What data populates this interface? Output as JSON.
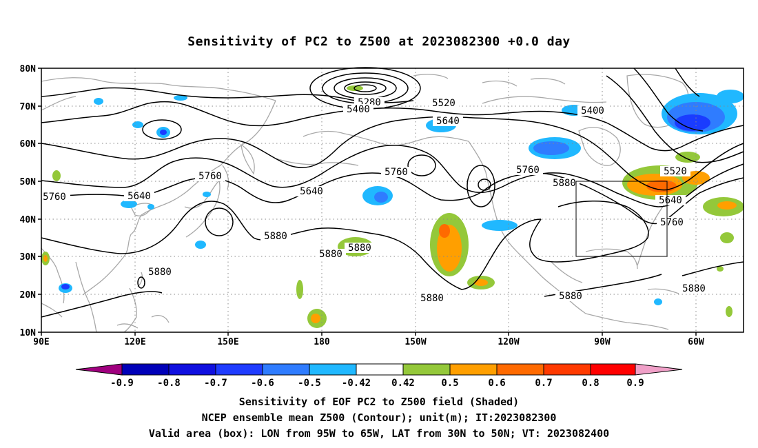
{
  "title": "Sensitivity of PC2 to Z500 at 2023082300 +0.0 day",
  "map": {
    "lat_ticks": [
      "80N",
      "70N",
      "60N",
      "50N",
      "40N",
      "30N",
      "20N",
      "10N"
    ],
    "lon_ticks": [
      "90E",
      "120E",
      "150E",
      "180",
      "150W",
      "120W",
      "90W",
      "60W"
    ],
    "contour_labels": [
      "5280",
      "5400",
      "5520",
      "5640",
      "5760",
      "5880"
    ],
    "valid_box": {
      "lon_from": "95W",
      "lon_to": "65W",
      "lat_from": "30N",
      "lat_to": "50N"
    },
    "colors": {
      "contour": "#000000",
      "coast": "#a8a8a8",
      "grid": "#888888",
      "neg_strong": "#1a3cff",
      "neg_mid": "#2f7cff",
      "neg_light": "#20b8ff",
      "pos_green": "#94c83a",
      "pos_orange": "#ff9f00",
      "pos_dark_orange": "#ff6a00",
      "pos_red": "#ff2a00"
    }
  },
  "colorbar": {
    "labels": [
      "-0.9",
      "-0.8",
      "-0.7",
      "-0.6",
      "-0.5",
      "-0.42",
      "0.42",
      "0.5",
      "0.6",
      "0.7",
      "0.8",
      "0.9"
    ],
    "colors": [
      "#a0007f",
      "#0000b8",
      "#1010e0",
      "#1f3cff",
      "#2f7cff",
      "#20b8ff",
      "#ffffff",
      "#94c83a",
      "#ff9f00",
      "#ff6a00",
      "#ff3a00",
      "#ff0000",
      "#f0a0c8"
    ]
  },
  "footer": {
    "line1": "Sensitivity of EOF PC2 to Z500 field (Shaded)",
    "line2": "NCEP ensemble mean Z500 (Contour); unit(m); IT:2023082300",
    "line3": "Valid area (box): LON from 95W to 65W, LAT from 30N to 50N; VT: 2023082400"
  }
}
